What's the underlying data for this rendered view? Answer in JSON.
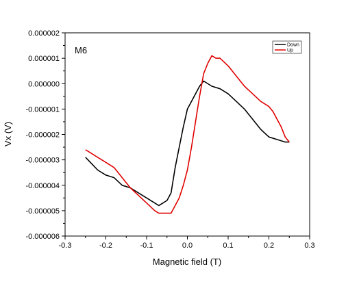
{
  "chart_data": {
    "type": "line",
    "title": "",
    "annotation": "M6",
    "xlabel": "Magnetic field (T)",
    "ylabel": "Vx (V)",
    "xlim": [
      -0.3,
      0.3
    ],
    "ylim": [
      -6e-06,
      2e-06
    ],
    "xticks": [
      -0.3,
      -0.2,
      -0.1,
      0.0,
      0.1,
      0.2,
      0.3
    ],
    "xtick_labels": [
      "-0.3",
      "-0.2",
      "-0.1",
      "0.0",
      "0.1",
      "0.2",
      "0.3"
    ],
    "yticks": [
      2e-06,
      1e-06,
      0.0,
      -1e-06,
      -2e-06,
      -3e-06,
      -4e-06,
      -5e-06,
      -6e-06
    ],
    "ytick_labels": [
      "0.000002",
      "0.000001",
      "0.000000",
      "-0.000001",
      "-0.000002",
      "-0.000003",
      "-0.000004",
      "-0.000005",
      "-0.000006"
    ],
    "grid": false,
    "legend_position": "top-right",
    "series": [
      {
        "name": "Down",
        "color": "#000000",
        "x": [
          0.25,
          0.24,
          0.22,
          0.2,
          0.18,
          0.16,
          0.14,
          0.12,
          0.1,
          0.08,
          0.06,
          0.04,
          0.03,
          0.02,
          0.01,
          0.0,
          -0.01,
          -0.02,
          -0.03,
          -0.04,
          -0.05,
          -0.06,
          -0.07,
          -0.08,
          -0.1,
          -0.12,
          -0.14,
          -0.16,
          -0.18,
          -0.2,
          -0.22,
          -0.25
        ],
        "y": [
          -2.3e-06,
          -2.3e-06,
          -2.2e-06,
          -2.1e-06,
          -1.8e-06,
          -1.4e-06,
          -1e-06,
          -7e-07,
          -4e-07,
          -2e-07,
          -1e-07,
          1e-07,
          -1e-07,
          -4e-07,
          -7e-07,
          -1e-06,
          -1.7e-06,
          -2.5e-06,
          -3.3e-06,
          -4.3e-06,
          -4.6e-06,
          -4.7e-06,
          -4.8e-06,
          -4.7e-06,
          -4.5e-06,
          -4.3e-06,
          -4.1e-06,
          -4e-06,
          -3.7e-06,
          -3.6e-06,
          -3.4e-06,
          -2.9e-06
        ]
      },
      {
        "name": "Up",
        "color": "#e00000",
        "x": [
          -0.25,
          -0.22,
          -0.2,
          -0.18,
          -0.16,
          -0.14,
          -0.12,
          -0.1,
          -0.08,
          -0.07,
          -0.06,
          -0.04,
          -0.03,
          -0.02,
          -0.01,
          0.0,
          0.01,
          0.02,
          0.03,
          0.04,
          0.05,
          0.06,
          0.07,
          0.08,
          0.1,
          0.12,
          0.14,
          0.16,
          0.18,
          0.2,
          0.21,
          0.22,
          0.23,
          0.24,
          0.25
        ],
        "y": [
          -2.6e-06,
          -2.9e-06,
          -3.1e-06,
          -3.3e-06,
          -3.7e-06,
          -4.1e-06,
          -4.4e-06,
          -4.7e-06,
          -5e-06,
          -5.1e-06,
          -5.1e-06,
          -5.1e-06,
          -4.8e-06,
          -4.5e-06,
          -4e-06,
          -3.4e-06,
          -2.5e-06,
          -1.5e-06,
          -5e-07,
          4e-07,
          8e-07,
          1.1e-06,
          1e-06,
          1e-06,
          7e-07,
          3e-07,
          -1e-07,
          -4e-07,
          -7e-07,
          -9e-07,
          -1.1e-06,
          -1.4e-06,
          -1.7e-06,
          -2.1e-06,
          -2.3e-06
        ]
      }
    ]
  }
}
